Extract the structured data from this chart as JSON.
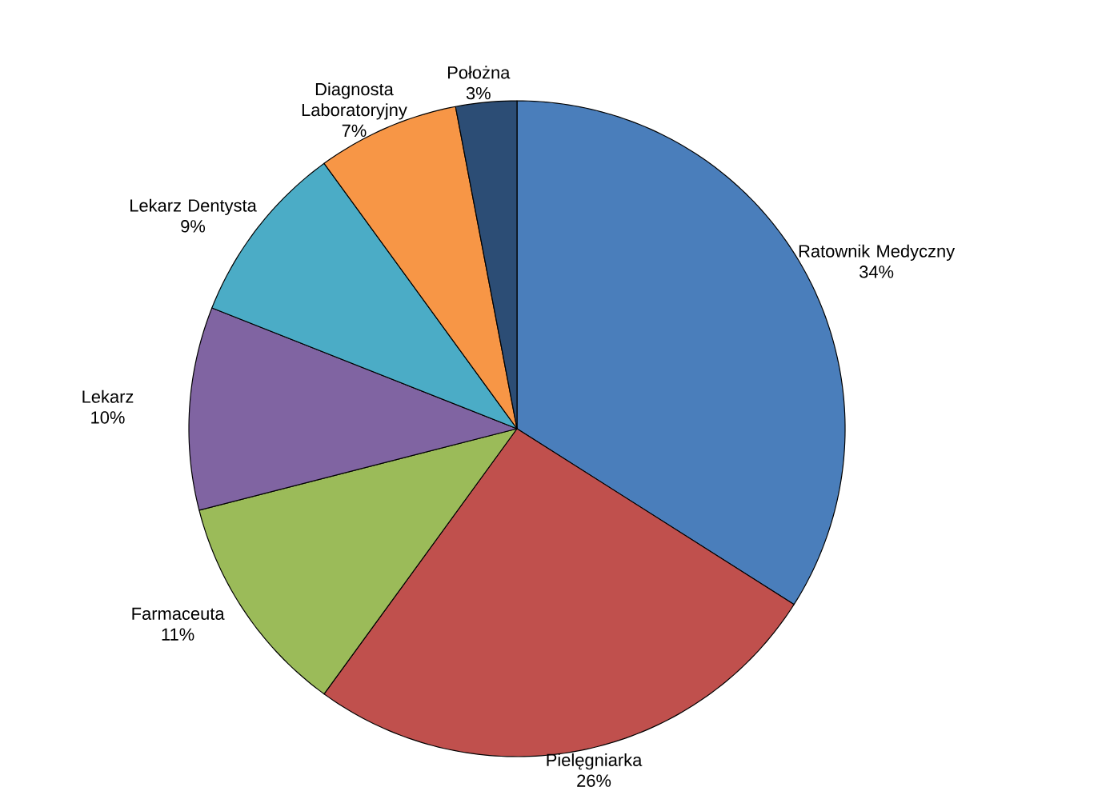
{
  "chart_data": {
    "type": "pie",
    "categories": [
      "Ratownik Medyczny",
      "Pielęgniarka",
      "Farmaceuta",
      "Lekarz",
      "Lekarz Dentysta",
      "Diagnosta Laboratoryjny",
      "Położna"
    ],
    "values": [
      34,
      26,
      11,
      10,
      9,
      7,
      3
    ],
    "value_labels": [
      "34%",
      "26%",
      "11%",
      "10%",
      "9%",
      "7%",
      "3%"
    ],
    "colors": [
      "#4a7ebb",
      "#c0504d",
      "#9bbb59",
      "#8064a2",
      "#4bacc6",
      "#f79646",
      "#2c4d75"
    ]
  }
}
